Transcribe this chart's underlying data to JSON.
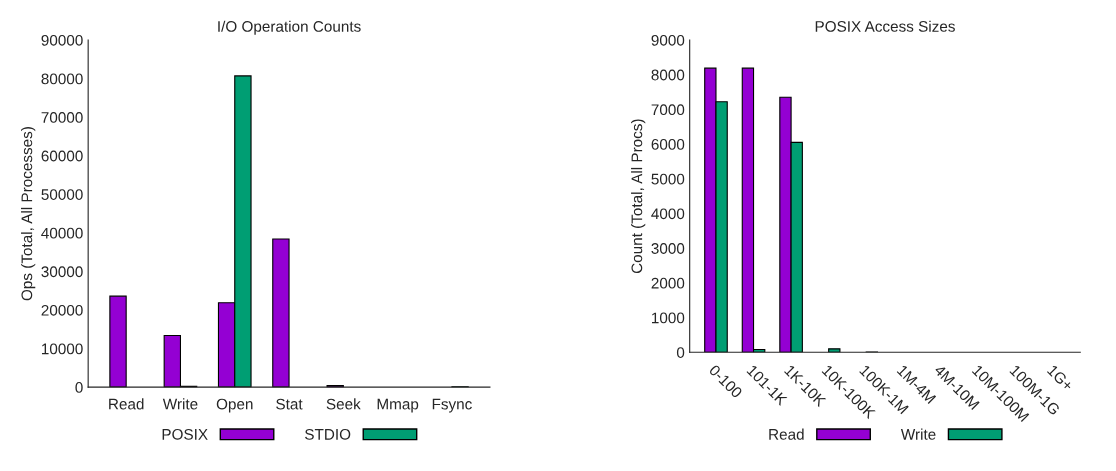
{
  "chart_data": [
    {
      "type": "bar",
      "title": "I/O Operation Counts",
      "ylabel": "Ops (Total, All Processes)",
      "categories": [
        "Read",
        "Write",
        "Open",
        "Stat",
        "Seek",
        "Mmap",
        "Fsync"
      ],
      "series": [
        {
          "name": "POSIX",
          "color": "#9400d3",
          "values": [
            23600,
            13400,
            21900,
            38400,
            400,
            0,
            0
          ]
        },
        {
          "name": "STDIO",
          "color": "#009e73",
          "values": [
            0,
            200,
            80700,
            0,
            0,
            0,
            100
          ]
        }
      ],
      "ylim": [
        0,
        90000
      ],
      "yticks": [
        0,
        10000,
        20000,
        30000,
        40000,
        50000,
        60000,
        70000,
        80000,
        90000
      ],
      "grid": false,
      "legend": "bottom"
    },
    {
      "type": "bar",
      "title": "POSIX Access Sizes",
      "ylabel": "Count (Total, All Procs)",
      "categories": [
        "0-100",
        "101-1K",
        "1K-10K",
        "10K-100K",
        "100K-1M",
        "1M-4M",
        "4M-10M",
        "10M-100M",
        "100M-1G",
        "1G+"
      ],
      "series": [
        {
          "name": "Read",
          "color": "#9400d3",
          "values": [
            8190,
            8190,
            7350,
            0,
            0,
            0,
            0,
            0,
            0,
            0
          ]
        },
        {
          "name": "Write",
          "color": "#009e73",
          "values": [
            7220,
            80,
            6050,
            100,
            10,
            0,
            0,
            0,
            0,
            0
          ]
        }
      ],
      "ylim": [
        0,
        9000
      ],
      "yticks": [
        0,
        1000,
        2000,
        3000,
        4000,
        5000,
        6000,
        7000,
        8000,
        9000
      ],
      "grid": false,
      "legend": "bottom"
    }
  ]
}
